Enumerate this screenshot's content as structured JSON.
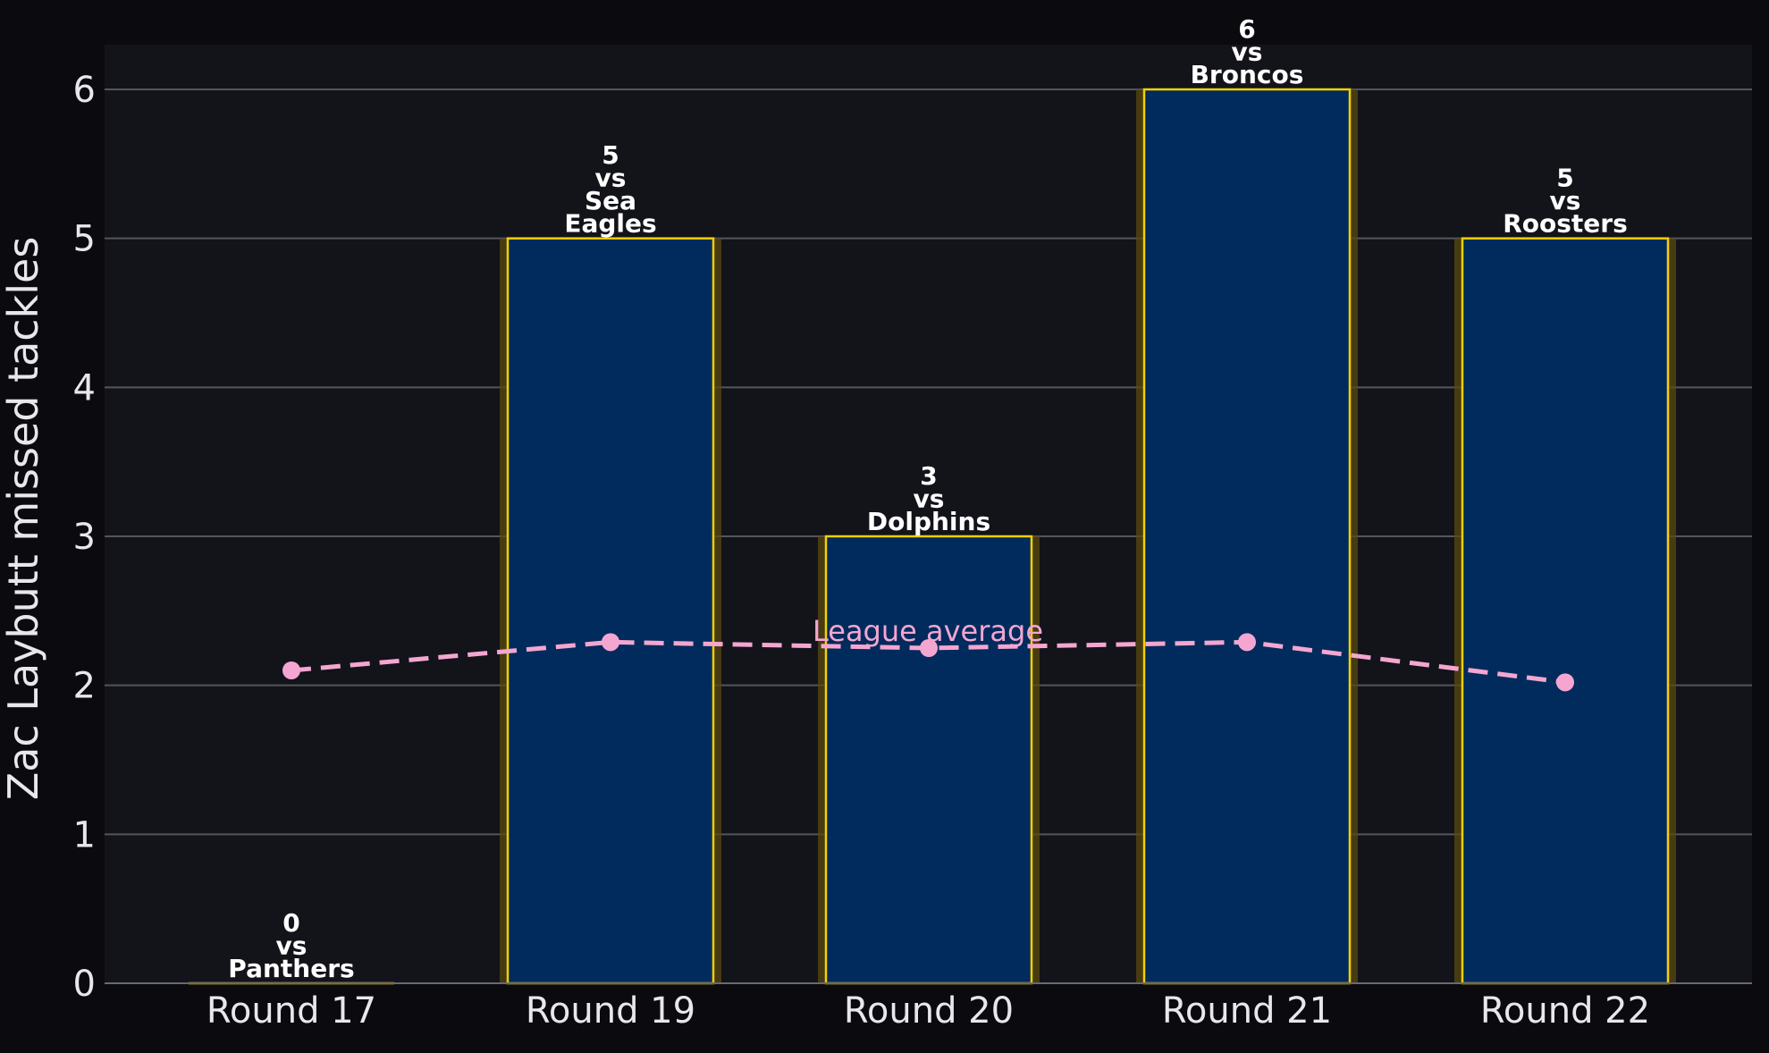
{
  "chart_data": {
    "type": "bar",
    "title": "",
    "xlabel": "",
    "ylabel": "Zac Laybutt missed tackles",
    "categories": [
      "Round 17",
      "Round 19",
      "Round 20",
      "Round 21",
      "Round 22"
    ],
    "series": [
      {
        "values": [
          0,
          5,
          3,
          6,
          5
        ]
      },
      {
        "name": "League average",
        "type": "line",
        "values": [
          2.1,
          2.29,
          2.25,
          2.29,
          2.02
        ]
      }
    ],
    "bar_labels": [
      [
        "0",
        "vs",
        "Panthers"
      ],
      [
        "5",
        "vs",
        "Sea",
        "Eagles"
      ],
      [
        "3",
        "vs",
        "Dolphins"
      ],
      [
        "6",
        "vs",
        "Broncos"
      ],
      [
        "5",
        "vs",
        "Roosters"
      ]
    ],
    "yticks": [
      "0",
      "1",
      "2",
      "3",
      "4",
      "5",
      "6"
    ],
    "ylim": [
      0,
      6.3
    ],
    "grid": "horizontal",
    "colors": {
      "page_background": "#0b0b0f",
      "plot_background": "#13131a",
      "bar_fill": "#002b5c",
      "bar_edge": "#f5d000",
      "bar_glow": "#5a4a10",
      "grid": "#55555c",
      "average_line": "#f4a6d1",
      "text": "#e8e8ec"
    }
  }
}
